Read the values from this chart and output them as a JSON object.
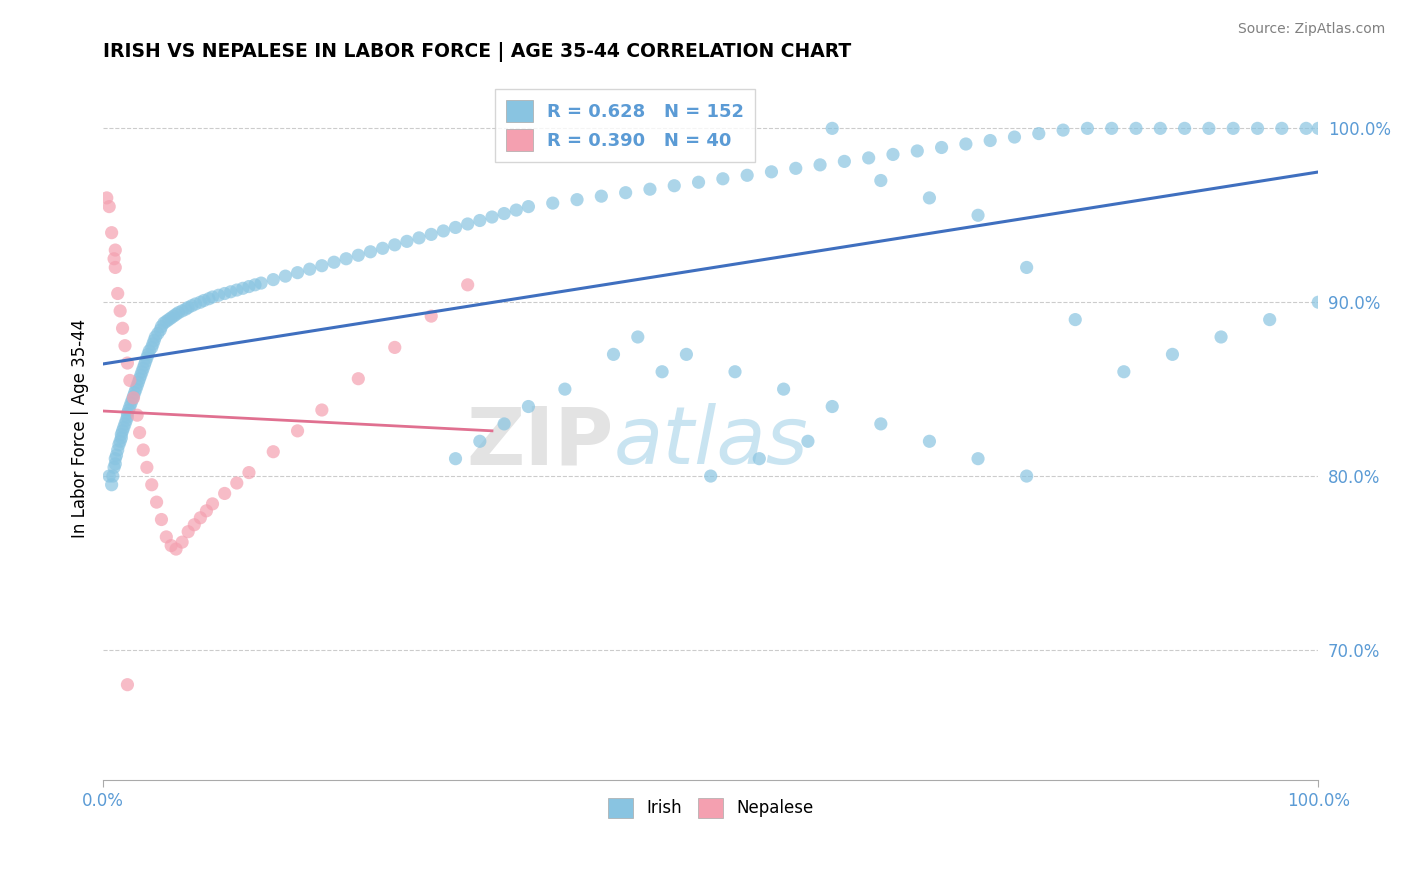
{
  "title": "IRISH VS NEPALESE IN LABOR FORCE | AGE 35-44 CORRELATION CHART",
  "source_text": "Source: ZipAtlas.com",
  "ylabel": "In Labor Force | Age 35-44",
  "xlim": [
    0.0,
    1.0
  ],
  "ylim": [
    0.625,
    1.03
  ],
  "x_tick_labels": [
    "0.0%",
    "100.0%"
  ],
  "y_tick_labels": [
    "70.0%",
    "80.0%",
    "90.0%",
    "100.0%"
  ],
  "y_tick_values": [
    0.7,
    0.8,
    0.9,
    1.0
  ],
  "watermark_zip": "ZIP",
  "watermark_atlas": "atlas",
  "legend_R_irish": "0.628",
  "legend_N_irish": "152",
  "legend_R_nepalese": "0.390",
  "legend_N_nepalese": "40",
  "irish_color": "#89C4E1",
  "nepalese_color": "#F4A0B0",
  "irish_line_color": "#3F6FBF",
  "nepalese_line_color": "#E07090",
  "legend_text_color": "#5B9BD5",
  "irish_x": [
    0.005,
    0.007,
    0.008,
    0.009,
    0.01,
    0.01,
    0.011,
    0.012,
    0.013,
    0.014,
    0.015,
    0.015,
    0.016,
    0.017,
    0.018,
    0.019,
    0.02,
    0.02,
    0.021,
    0.022,
    0.023,
    0.024,
    0.025,
    0.026,
    0.027,
    0.028,
    0.029,
    0.03,
    0.031,
    0.032,
    0.033,
    0.034,
    0.035,
    0.036,
    0.037,
    0.038,
    0.04,
    0.041,
    0.042,
    0.043,
    0.045,
    0.047,
    0.048,
    0.05,
    0.052,
    0.054,
    0.056,
    0.058,
    0.06,
    0.062,
    0.065,
    0.068,
    0.07,
    0.073,
    0.076,
    0.08,
    0.083,
    0.087,
    0.09,
    0.095,
    0.1,
    0.105,
    0.11,
    0.115,
    0.12,
    0.125,
    0.13,
    0.14,
    0.15,
    0.16,
    0.17,
    0.18,
    0.19,
    0.2,
    0.21,
    0.22,
    0.23,
    0.24,
    0.25,
    0.26,
    0.27,
    0.28,
    0.29,
    0.3,
    0.31,
    0.32,
    0.33,
    0.34,
    0.35,
    0.37,
    0.39,
    0.41,
    0.43,
    0.45,
    0.47,
    0.49,
    0.51,
    0.53,
    0.55,
    0.57,
    0.59,
    0.61,
    0.63,
    0.65,
    0.67,
    0.69,
    0.71,
    0.73,
    0.75,
    0.77,
    0.79,
    0.81,
    0.83,
    0.85,
    0.87,
    0.89,
    0.91,
    0.93,
    0.95,
    0.97,
    0.99,
    1.0,
    0.6,
    0.64,
    0.68,
    0.72,
    0.76,
    0.8,
    0.84,
    0.88,
    0.92,
    0.96,
    1.0,
    0.5,
    0.54,
    0.58,
    0.42,
    0.46,
    0.38,
    0.35,
    0.33,
    0.31,
    0.29,
    0.44,
    0.48,
    0.52,
    0.56,
    0.6,
    0.64,
    0.68,
    0.72,
    0.76
  ],
  "irish_y": [
    0.8,
    0.795,
    0.8,
    0.805,
    0.81,
    0.807,
    0.812,
    0.815,
    0.818,
    0.82,
    0.822,
    0.824,
    0.826,
    0.828,
    0.83,
    0.832,
    0.834,
    0.836,
    0.838,
    0.84,
    0.842,
    0.844,
    0.846,
    0.848,
    0.85,
    0.852,
    0.854,
    0.856,
    0.858,
    0.86,
    0.862,
    0.864,
    0.866,
    0.868,
    0.87,
    0.872,
    0.874,
    0.876,
    0.878,
    0.88,
    0.882,
    0.884,
    0.886,
    0.888,
    0.889,
    0.89,
    0.891,
    0.892,
    0.893,
    0.894,
    0.895,
    0.896,
    0.897,
    0.898,
    0.899,
    0.9,
    0.901,
    0.902,
    0.903,
    0.904,
    0.905,
    0.906,
    0.907,
    0.908,
    0.909,
    0.91,
    0.911,
    0.913,
    0.915,
    0.917,
    0.919,
    0.921,
    0.923,
    0.925,
    0.927,
    0.929,
    0.931,
    0.933,
    0.935,
    0.937,
    0.939,
    0.941,
    0.943,
    0.945,
    0.947,
    0.949,
    0.951,
    0.953,
    0.955,
    0.957,
    0.959,
    0.961,
    0.963,
    0.965,
    0.967,
    0.969,
    0.971,
    0.973,
    0.975,
    0.977,
    0.979,
    0.981,
    0.983,
    0.985,
    0.987,
    0.989,
    0.991,
    0.993,
    0.995,
    0.997,
    0.999,
    1.0,
    1.0,
    1.0,
    1.0,
    1.0,
    1.0,
    1.0,
    1.0,
    1.0,
    1.0,
    1.0,
    1.0,
    0.97,
    0.96,
    0.95,
    0.92,
    0.89,
    0.86,
    0.87,
    0.88,
    0.89,
    0.9,
    0.8,
    0.81,
    0.82,
    0.87,
    0.86,
    0.85,
    0.84,
    0.83,
    0.82,
    0.81,
    0.88,
    0.87,
    0.86,
    0.85,
    0.84,
    0.83,
    0.82,
    0.81,
    0.8
  ],
  "nep_x": [
    0.003,
    0.005,
    0.007,
    0.009,
    0.01,
    0.012,
    0.014,
    0.016,
    0.018,
    0.02,
    0.022,
    0.025,
    0.028,
    0.03,
    0.033,
    0.036,
    0.04,
    0.044,
    0.048,
    0.052,
    0.056,
    0.06,
    0.065,
    0.07,
    0.075,
    0.08,
    0.085,
    0.09,
    0.1,
    0.11,
    0.12,
    0.14,
    0.16,
    0.18,
    0.21,
    0.24,
    0.27,
    0.3,
    0.01,
    0.02
  ],
  "nep_y": [
    0.96,
    0.955,
    0.94,
    0.925,
    0.92,
    0.905,
    0.895,
    0.885,
    0.875,
    0.865,
    0.855,
    0.845,
    0.835,
    0.825,
    0.815,
    0.805,
    0.795,
    0.785,
    0.775,
    0.765,
    0.76,
    0.758,
    0.762,
    0.768,
    0.772,
    0.776,
    0.78,
    0.784,
    0.79,
    0.796,
    0.802,
    0.814,
    0.826,
    0.838,
    0.856,
    0.874,
    0.892,
    0.91,
    0.93,
    0.68
  ]
}
